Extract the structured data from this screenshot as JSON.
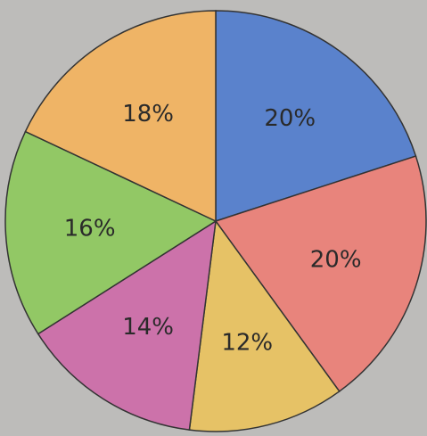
{
  "chart_data": {
    "type": "pie",
    "categories": [
      null,
      null,
      null,
      null,
      null,
      null
    ],
    "values": [
      20,
      20,
      12,
      14,
      16,
      18
    ],
    "value_labels": [
      "20%",
      "20%",
      "12%",
      "14%",
      "16%",
      "18%"
    ],
    "colors": [
      "#5a82cc",
      "#e8847c",
      "#e6c266",
      "#cc72aa",
      "#92c865",
      "#efb466"
    ]
  }
}
